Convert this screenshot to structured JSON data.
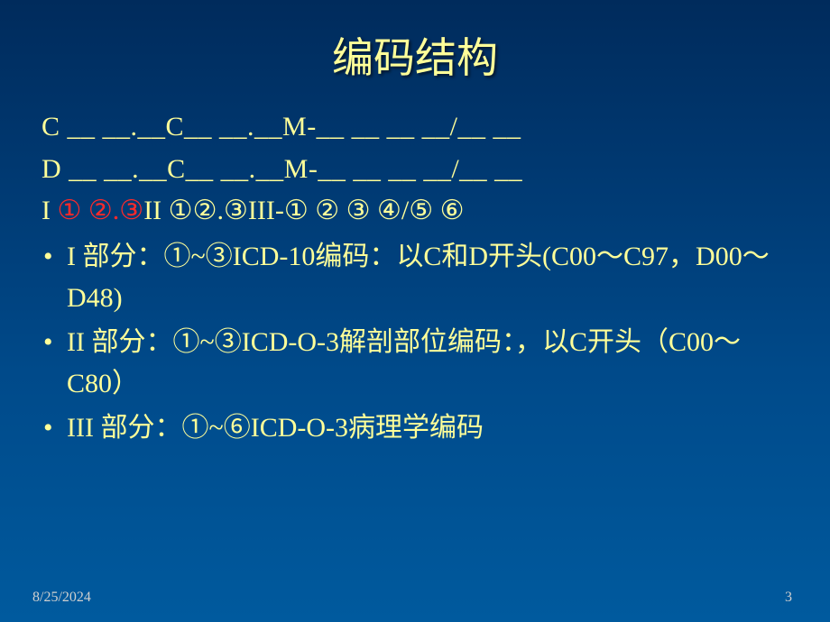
{
  "title": "编码结构",
  "lines": {
    "l1": "C __ __.__C__ __.__M-__ __ __ __/__ __",
    "l2": "D __ __.__C__ __.__M-__ __ __ __/__ __",
    "l3_pre": "I  ",
    "l3_red": "① ②.③",
    "l3_post": "II ①②.③III-① ② ③ ④/⑤ ⑥"
  },
  "bullets": [
    "I    部分：①~③ICD-10编码：以C和D开头(C00～C97，D00～D48)",
    "II   部分：①~③ICD-O-3解剖部位编码：，以C开头（C00～C80）",
    "III  部分：①~⑥ICD-O-3病理学编码"
  ],
  "footer": {
    "date": "8/25/2024",
    "page": "3"
  },
  "colors": {
    "text": "#ffff99",
    "highlight": "#ff2a2a",
    "footer": "#cfcfcf",
    "bg_top": "#002b5c",
    "bg_bottom": "#005a9e"
  },
  "typography": {
    "title_fontsize": 46,
    "body_fontsize": 30,
    "footer_fontsize": 16
  }
}
